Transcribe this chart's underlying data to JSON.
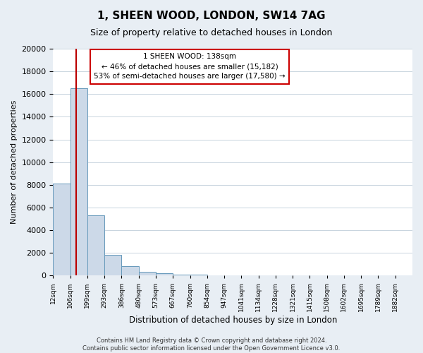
{
  "title": "1, SHEEN WOOD, LONDON, SW14 7AG",
  "subtitle": "Size of property relative to detached houses in London",
  "xlabel": "Distribution of detached houses by size in London",
  "ylabel": "Number of detached properties",
  "bin_labels": [
    "12sqm",
    "106sqm",
    "199sqm",
    "293sqm",
    "386sqm",
    "480sqm",
    "573sqm",
    "667sqm",
    "760sqm",
    "854sqm",
    "947sqm",
    "1041sqm",
    "1134sqm",
    "1228sqm",
    "1321sqm",
    "1415sqm",
    "1508sqm",
    "1602sqm",
    "1695sqm",
    "1789sqm",
    "1882sqm"
  ],
  "bin_counts": [
    8100,
    16500,
    5300,
    1850,
    800,
    300,
    200,
    100,
    100,
    0,
    0,
    0,
    0,
    0,
    0,
    0,
    0,
    0,
    0,
    0,
    0
  ],
  "bar_color": "#ccd9e8",
  "bar_edge_color": "#6699bb",
  "marker_line_color": "#bb0000",
  "annotation_title": "1 SHEEN WOOD: 138sqm",
  "annotation_line1": "← 46% of detached houses are smaller (15,182)",
  "annotation_line2": "53% of semi-detached houses are larger (17,580) →",
  "annotation_box_facecolor": "#ffffff",
  "annotation_box_edgecolor": "#cc0000",
  "ylim": [
    0,
    20000
  ],
  "yticks": [
    0,
    2000,
    4000,
    6000,
    8000,
    10000,
    12000,
    14000,
    16000,
    18000,
    20000
  ],
  "footer_line1": "Contains HM Land Registry data © Crown copyright and database right 2024.",
  "footer_line2": "Contains public sector information licensed under the Open Government Licence v3.0.",
  "fig_bg_color": "#e8eef4",
  "plot_bg_color": "#ffffff",
  "grid_color": "#c8d4de"
}
